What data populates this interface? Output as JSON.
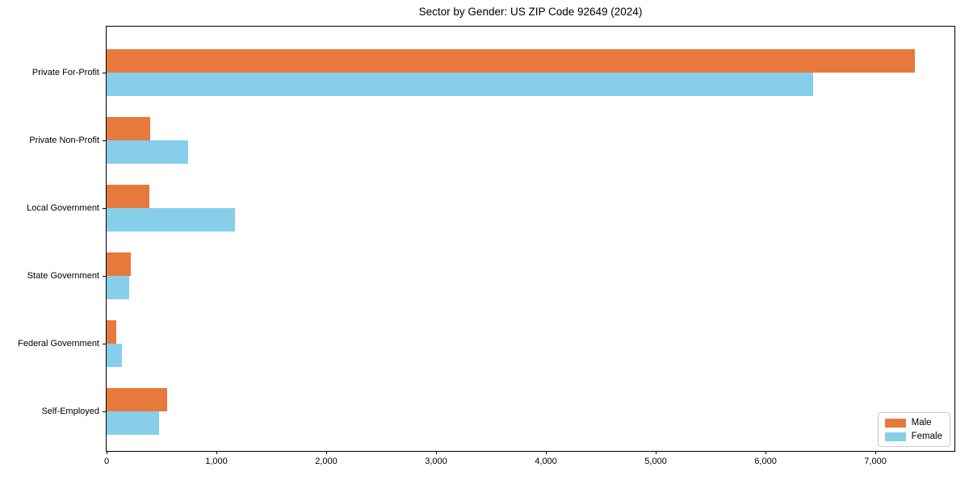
{
  "title": "Sector by Gender: US ZIP Code 92649 (2024)",
  "chart_data": {
    "type": "bar",
    "orientation": "horizontal",
    "title": "Sector by Gender: US ZIP Code 92649 (2024)",
    "categories": [
      "Private For-Profit",
      "Private Non-Profit",
      "Local Government",
      "State Government",
      "Federal Government",
      "Self-Employed"
    ],
    "series": [
      {
        "name": "Male",
        "color": "#E8793C",
        "values": [
          7360,
          395,
          390,
          220,
          90,
          550
        ]
      },
      {
        "name": "Female",
        "color": "#87CEEB",
        "values": [
          6430,
          740,
          1170,
          205,
          140,
          480
        ]
      }
    ],
    "xlabel": "",
    "ylabel": "",
    "xlim": [
      0,
      7720
    ],
    "xticks": [
      0,
      1000,
      2000,
      3000,
      4000,
      5000,
      6000,
      7000
    ],
    "xtick_labels": [
      "0",
      "1,000",
      "2,000",
      "3,000",
      "4,000",
      "5,000",
      "6,000",
      "7,000"
    ],
    "grid": false,
    "legend_position": "lower right",
    "frame": true
  }
}
